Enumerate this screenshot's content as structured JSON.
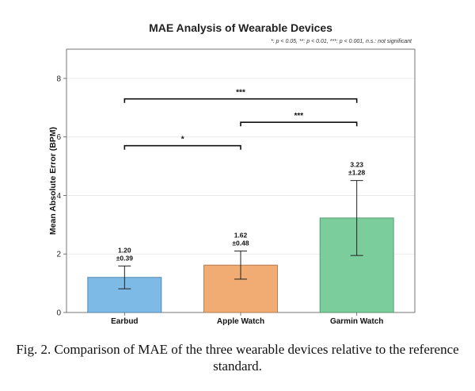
{
  "chart_data": {
    "type": "bar",
    "title": "MAE Analysis of Wearable Devices",
    "significance_note": "*: p < 0.05, **: p < 0.01, ***: p < 0.001, n.s.: not significant",
    "ylabel": "Mean Absolute Error (BPM)",
    "xlabel": "",
    "ylim": [
      0,
      9
    ],
    "yticks": [
      0,
      2,
      4,
      6,
      8
    ],
    "grid": true,
    "categories": [
      "Earbud",
      "Apple Watch",
      "Garmin Watch"
    ],
    "values": [
      1.2,
      1.62,
      3.23
    ],
    "errors": [
      0.39,
      0.48,
      1.28
    ],
    "value_labels": [
      "1.20",
      "1.62",
      "3.23"
    ],
    "error_labels": [
      "±0.39",
      "±0.48",
      "±1.28"
    ],
    "colors": [
      "#7dbbe6",
      "#f0ac72",
      "#7bce9c"
    ],
    "edge_colors": [
      "#4d7fa6",
      "#b07648",
      "#4e9468"
    ],
    "significance": [
      {
        "from": 0,
        "to": 1,
        "y": 5.7,
        "label": "*"
      },
      {
        "from": 1,
        "to": 2,
        "y": 6.5,
        "label": "***"
      },
      {
        "from": 0,
        "to": 2,
        "y": 7.3,
        "label": "***"
      }
    ]
  },
  "caption": "Fig. 2. Comparison of MAE of the three wearable devices relative to the reference standard."
}
